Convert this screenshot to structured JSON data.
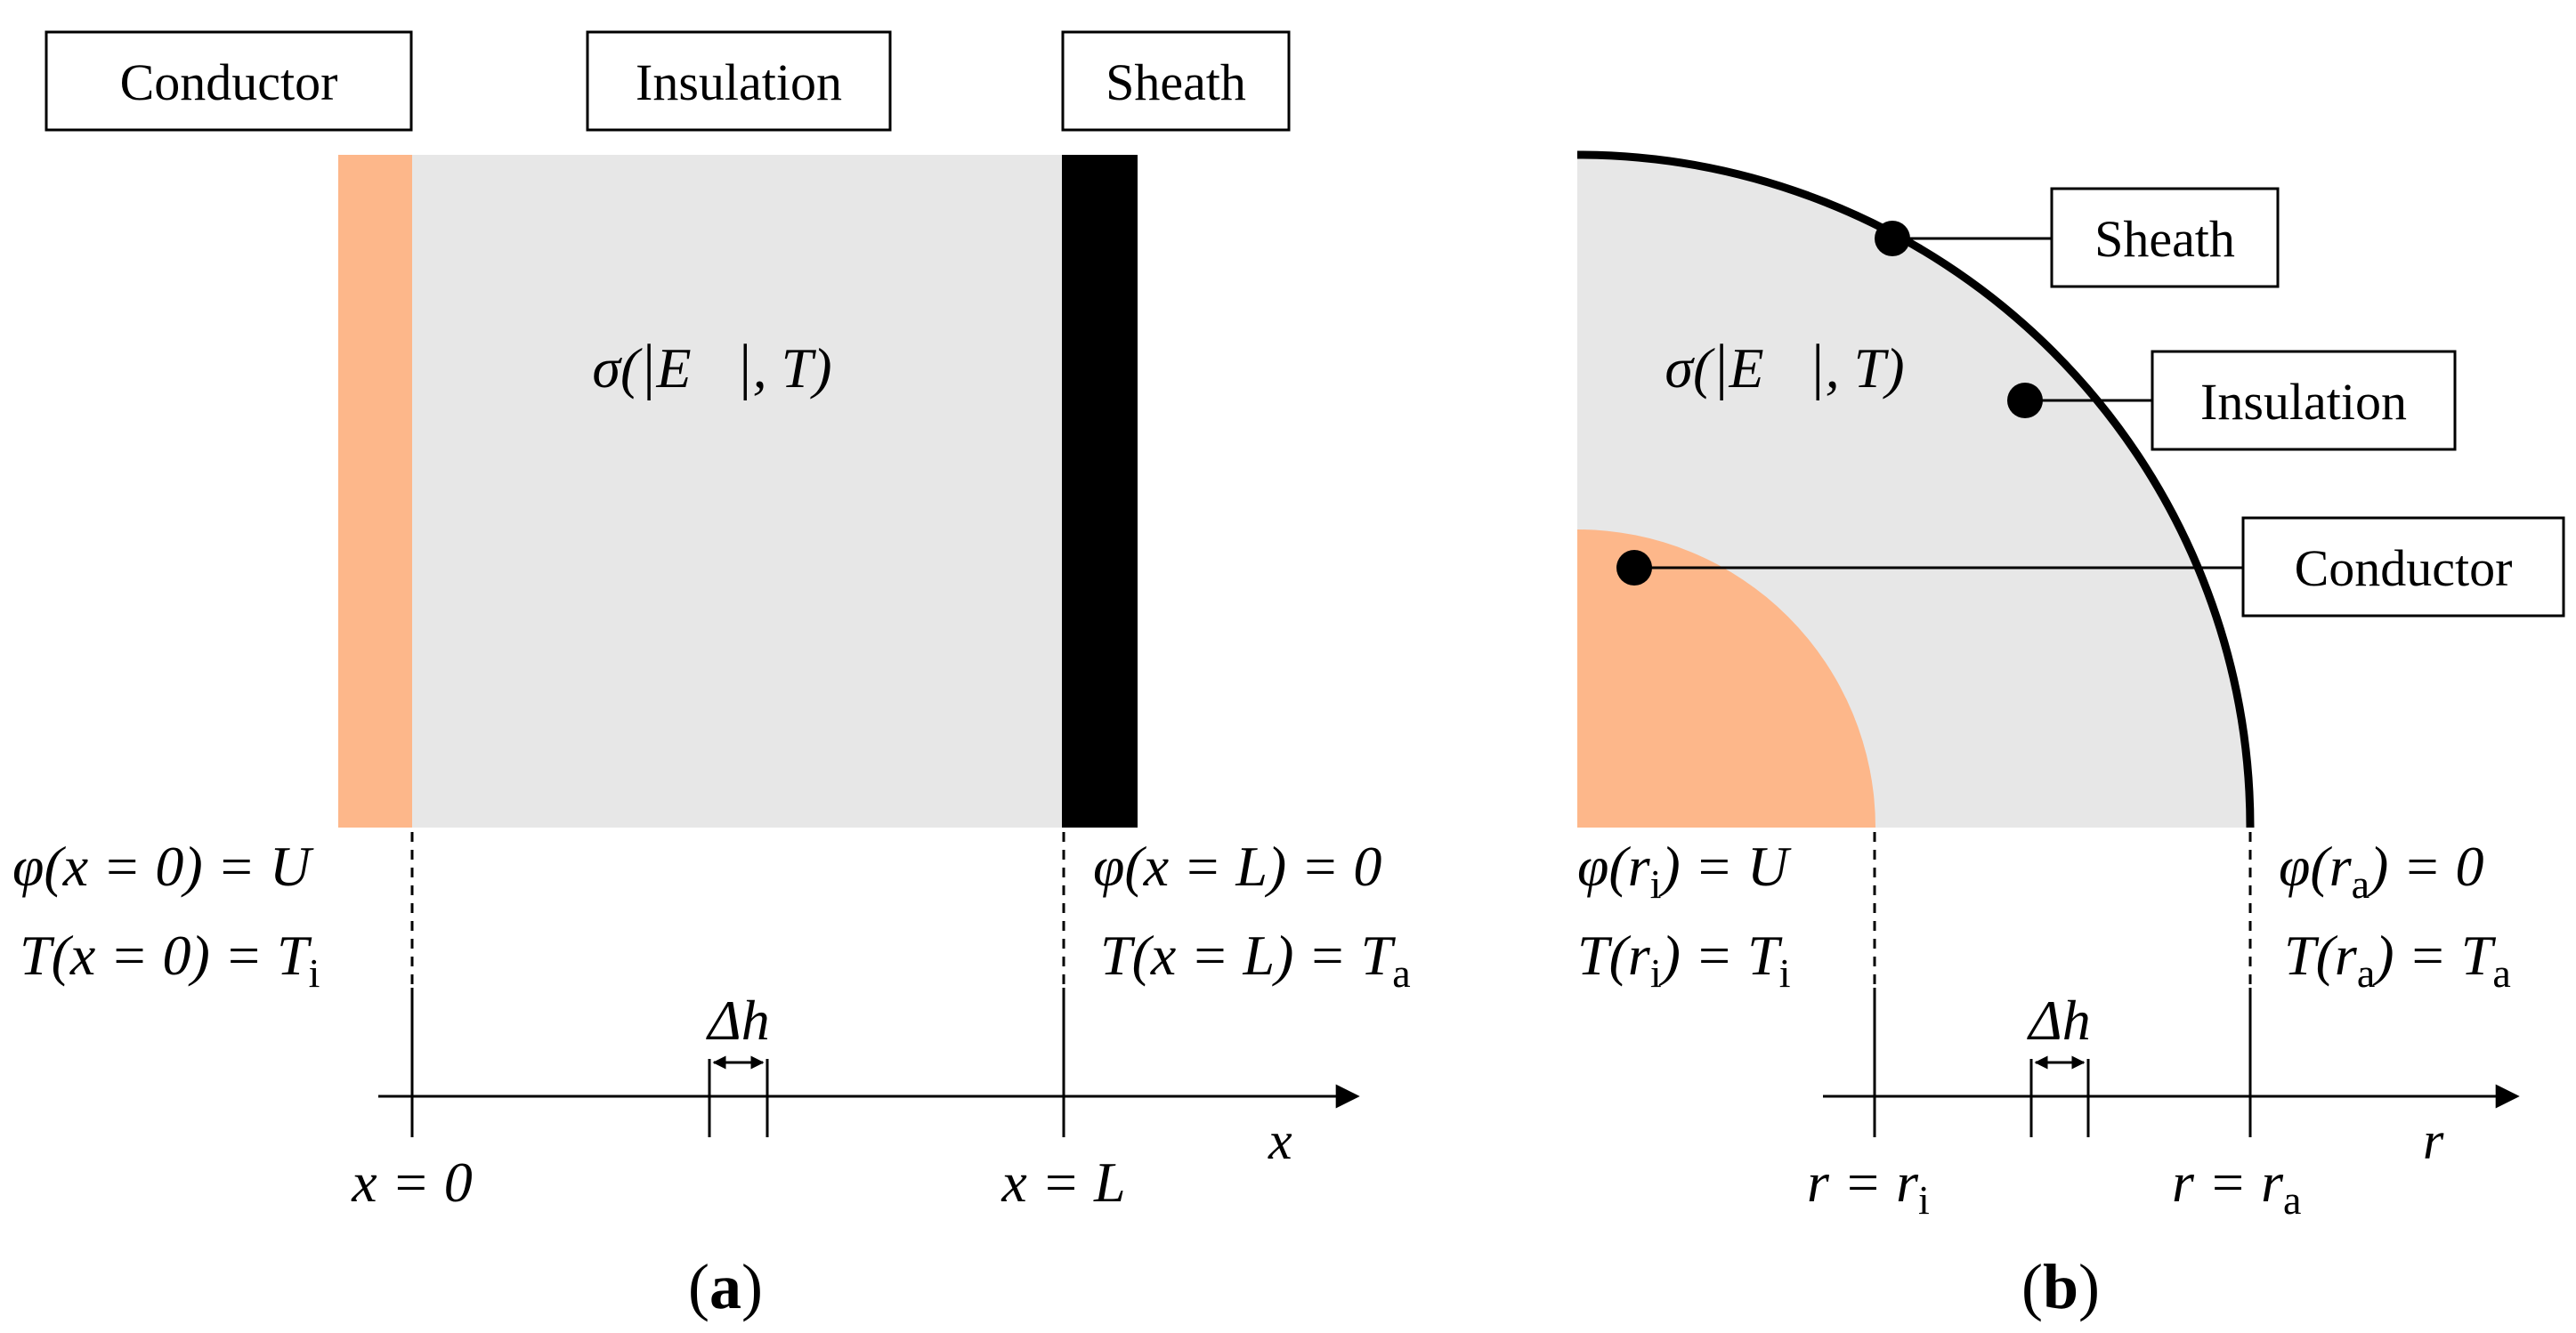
{
  "panel_a": {
    "conductor_label": "Conductor",
    "insulation_label": "Insulation",
    "sheath_label": "Sheath",
    "sigma": {
      "lhs": "σ(",
      "vec": "E⃗",
      "rhs": ", T)"
    },
    "left_bc": {
      "phi": {
        "lhs": "φ(x = 0) = U"
      },
      "temp": {
        "lhs": "T(x = 0) = T",
        "sub": "i"
      }
    },
    "right_bc": {
      "phi": {
        "lhs": "φ(x = L) = 0"
      },
      "temp": {
        "lhs": "T(x = L) = T",
        "sub": "a"
      }
    },
    "delta": "Δh",
    "tick_left": "x = 0",
    "tick_right": "x = L",
    "axis_var": "x",
    "caption_open": "(",
    "caption_letter": "a",
    "caption_close": ")"
  },
  "panel_b": {
    "sheath_label": "Sheath",
    "insulation_label": "Insulation",
    "conductor_label": "Conductor",
    "sigma": {
      "lhs": "σ(",
      "vec": "E⃗",
      "rhs": ", T)"
    },
    "left_bc": {
      "phi": {
        "pre": "φ(r",
        "sub": "i",
        "post": ") = U"
      },
      "temp": {
        "pre": "T(r",
        "sub": "i",
        "post": ") = T",
        "sub2": "i"
      }
    },
    "right_bc": {
      "phi": {
        "pre": "φ(r",
        "sub": "a",
        "post": ") = 0"
      },
      "temp": {
        "pre": "T(r",
        "sub": "a",
        "post": ") = T",
        "sub2": "a"
      }
    },
    "delta": "Δh",
    "tick_left": {
      "pre": "r = r",
      "sub": "i"
    },
    "tick_right": {
      "pre": "r = r",
      "sub": "a"
    },
    "axis_var": "r",
    "caption_open": "(",
    "caption_letter": "b",
    "caption_close": ")"
  },
  "colors": {
    "conductor": "#fdb78a",
    "insulation": "#e7e7e7",
    "sheath": "#000000"
  }
}
